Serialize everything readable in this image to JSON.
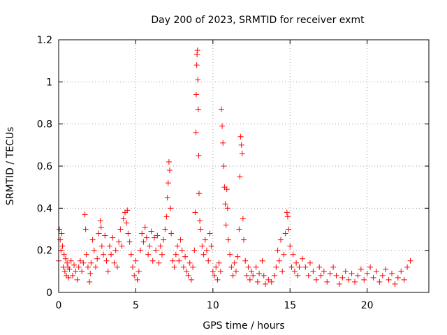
{
  "chart_data": {
    "type": "scatter",
    "title": "Day 200 of 2023, SRMTID for receiver exmt",
    "xlabel": "GPS time / hours",
    "ylabel": "SRMTID / TECUs",
    "xlim": [
      0,
      24
    ],
    "ylim": [
      0,
      1.2
    ],
    "x_ticks": [
      0,
      5,
      10,
      15,
      20
    ],
    "x_tick_labels": [
      "0",
      "5",
      "10",
      "15",
      "20"
    ],
    "y_ticks": [
      0,
      0.2,
      0.4,
      0.6,
      0.8,
      1,
      1.2
    ],
    "y_tick_labels": [
      "0",
      "0.2",
      "0.4",
      "0.6",
      "0.8",
      "1",
      "1.2"
    ],
    "grid": true,
    "marker": "+",
    "series": [
      {
        "name": "SRMTID",
        "color": "#ff0000",
        "points": [
          [
            0.0,
            0.15
          ],
          [
            0.05,
            0.3
          ],
          [
            0.1,
            0.25
          ],
          [
            0.15,
            0.2
          ],
          [
            0.2,
            0.28
          ],
          [
            0.25,
            0.22
          ],
          [
            0.3,
            0.12
          ],
          [
            0.35,
            0.18
          ],
          [
            0.4,
            0.1
          ],
          [
            0.45,
            0.16
          ],
          [
            0.5,
            0.08
          ],
          [
            0.55,
            0.14
          ],
          [
            0.6,
            0.12
          ],
          [
            0.65,
            0.07
          ],
          [
            0.7,
            0.11
          ],
          [
            0.8,
            0.15
          ],
          [
            0.9,
            0.08
          ],
          [
            1.0,
            0.13
          ],
          [
            1.1,
            0.1
          ],
          [
            1.2,
            0.06
          ],
          [
            1.3,
            0.12
          ],
          [
            1.4,
            0.15
          ],
          [
            1.5,
            0.1
          ],
          [
            1.6,
            0.14
          ],
          [
            1.7,
            0.37
          ],
          [
            1.75,
            0.3
          ],
          [
            1.8,
            0.18
          ],
          [
            1.9,
            0.12
          ],
          [
            2.0,
            0.05
          ],
          [
            2.05,
            0.09
          ],
          [
            2.1,
            0.14
          ],
          [
            2.2,
            0.25
          ],
          [
            2.3,
            0.2
          ],
          [
            2.4,
            0.12
          ],
          [
            2.5,
            0.16
          ],
          [
            2.6,
            0.28
          ],
          [
            2.7,
            0.34
          ],
          [
            2.75,
            0.31
          ],
          [
            2.8,
            0.22
          ],
          [
            2.9,
            0.18
          ],
          [
            3.0,
            0.27
          ],
          [
            3.1,
            0.15
          ],
          [
            3.2,
            0.1
          ],
          [
            3.3,
            0.22
          ],
          [
            3.4,
            0.18
          ],
          [
            3.5,
            0.26
          ],
          [
            3.6,
            0.14
          ],
          [
            3.7,
            0.2
          ],
          [
            3.8,
            0.12
          ],
          [
            3.9,
            0.24
          ],
          [
            4.0,
            0.3
          ],
          [
            4.1,
            0.22
          ],
          [
            4.2,
            0.35
          ],
          [
            4.3,
            0.38
          ],
          [
            4.4,
            0.33
          ],
          [
            4.45,
            0.39
          ],
          [
            4.5,
            0.28
          ],
          [
            4.6,
            0.24
          ],
          [
            4.7,
            0.18
          ],
          [
            4.8,
            0.12
          ],
          [
            4.9,
            0.08
          ],
          [
            5.0,
            0.15
          ],
          [
            5.1,
            0.06
          ],
          [
            5.2,
            0.1
          ],
          [
            5.3,
            0.2
          ],
          [
            5.4,
            0.28
          ],
          [
            5.5,
            0.24
          ],
          [
            5.6,
            0.31
          ],
          [
            5.7,
            0.26
          ],
          [
            5.8,
            0.18
          ],
          [
            5.9,
            0.22
          ],
          [
            6.0,
            0.29
          ],
          [
            6.1,
            0.15
          ],
          [
            6.2,
            0.26
          ],
          [
            6.3,
            0.2
          ],
          [
            6.4,
            0.27
          ],
          [
            6.5,
            0.14
          ],
          [
            6.6,
            0.22
          ],
          [
            6.7,
            0.18
          ],
          [
            6.8,
            0.25
          ],
          [
            6.9,
            0.3
          ],
          [
            7.0,
            0.36
          ],
          [
            7.05,
            0.45
          ],
          [
            7.1,
            0.52
          ],
          [
            7.15,
            0.62
          ],
          [
            7.2,
            0.58
          ],
          [
            7.25,
            0.4
          ],
          [
            7.3,
            0.28
          ],
          [
            7.4,
            0.15
          ],
          [
            7.5,
            0.12
          ],
          [
            7.6,
            0.18
          ],
          [
            7.7,
            0.22
          ],
          [
            7.8,
            0.15
          ],
          [
            7.9,
            0.25
          ],
          [
            8.0,
            0.2
          ],
          [
            8.1,
            0.12
          ],
          [
            8.2,
            0.17
          ],
          [
            8.3,
            0.1
          ],
          [
            8.4,
            0.08
          ],
          [
            8.5,
            0.14
          ],
          [
            8.6,
            0.06
          ],
          [
            8.7,
            0.12
          ],
          [
            8.8,
            0.2
          ],
          [
            8.85,
            0.38
          ],
          [
            8.9,
            0.76
          ],
          [
            8.92,
            0.94
          ],
          [
            8.95,
            1.08
          ],
          [
            8.97,
            1.13
          ],
          [
            9.0,
            1.15
          ],
          [
            9.02,
            1.01
          ],
          [
            9.05,
            0.87
          ],
          [
            9.08,
            0.65
          ],
          [
            9.1,
            0.47
          ],
          [
            9.15,
            0.34
          ],
          [
            9.2,
            0.3
          ],
          [
            9.3,
            0.22
          ],
          [
            9.4,
            0.18
          ],
          [
            9.5,
            0.25
          ],
          [
            9.6,
            0.2
          ],
          [
            9.7,
            0.15
          ],
          [
            9.8,
            0.28
          ],
          [
            9.9,
            0.22
          ],
          [
            10.0,
            0.1
          ],
          [
            10.1,
            0.08
          ],
          [
            10.2,
            0.12
          ],
          [
            10.3,
            0.06
          ],
          [
            10.4,
            0.14
          ],
          [
            10.5,
            0.1
          ],
          [
            10.55,
            0.87
          ],
          [
            10.6,
            0.79
          ],
          [
            10.65,
            0.71
          ],
          [
            10.7,
            0.6
          ],
          [
            10.75,
            0.5
          ],
          [
            10.8,
            0.42
          ],
          [
            10.85,
            0.32
          ],
          [
            10.9,
            0.49
          ],
          [
            10.95,
            0.4
          ],
          [
            11.0,
            0.25
          ],
          [
            11.1,
            0.18
          ],
          [
            11.2,
            0.12
          ],
          [
            11.3,
            0.08
          ],
          [
            11.4,
            0.14
          ],
          [
            11.5,
            0.1
          ],
          [
            11.6,
            0.17
          ],
          [
            11.7,
            0.3
          ],
          [
            11.75,
            0.55
          ],
          [
            11.8,
            0.74
          ],
          [
            11.85,
            0.7
          ],
          [
            11.9,
            0.66
          ],
          [
            11.95,
            0.35
          ],
          [
            12.0,
            0.25
          ],
          [
            12.1,
            0.15
          ],
          [
            12.2,
            0.08
          ],
          [
            12.3,
            0.12
          ],
          [
            12.4,
            0.06
          ],
          [
            12.5,
            0.1
          ],
          [
            12.6,
            0.08
          ],
          [
            12.8,
            0.12
          ],
          [
            12.9,
            0.05
          ],
          [
            13.0,
            0.09
          ],
          [
            13.2,
            0.15
          ],
          [
            13.3,
            0.08
          ],
          [
            13.4,
            0.04
          ],
          [
            13.6,
            0.06
          ],
          [
            13.8,
            0.05
          ],
          [
            14.0,
            0.08
          ],
          [
            14.1,
            0.12
          ],
          [
            14.2,
            0.2
          ],
          [
            14.3,
            0.15
          ],
          [
            14.4,
            0.25
          ],
          [
            14.5,
            0.1
          ],
          [
            14.6,
            0.18
          ],
          [
            14.7,
            0.28
          ],
          [
            14.8,
            0.38
          ],
          [
            14.85,
            0.36
          ],
          [
            14.9,
            0.3
          ],
          [
            15.0,
            0.22
          ],
          [
            15.1,
            0.12
          ],
          [
            15.2,
            0.18
          ],
          [
            15.3,
            0.1
          ],
          [
            15.4,
            0.14
          ],
          [
            15.5,
            0.08
          ],
          [
            15.6,
            0.12
          ],
          [
            15.8,
            0.16
          ],
          [
            16.0,
            0.12
          ],
          [
            16.2,
            0.08
          ],
          [
            16.3,
            0.14
          ],
          [
            16.5,
            0.1
          ],
          [
            16.7,
            0.06
          ],
          [
            16.9,
            0.12
          ],
          [
            17.0,
            0.08
          ],
          [
            17.2,
            0.1
          ],
          [
            17.4,
            0.05
          ],
          [
            17.6,
            0.09
          ],
          [
            17.8,
            0.12
          ],
          [
            18.0,
            0.08
          ],
          [
            18.2,
            0.04
          ],
          [
            18.4,
            0.07
          ],
          [
            18.6,
            0.1
          ],
          [
            18.8,
            0.06
          ],
          [
            19.0,
            0.09
          ],
          [
            19.2,
            0.05
          ],
          [
            19.4,
            0.08
          ],
          [
            19.6,
            0.11
          ],
          [
            19.8,
            0.06
          ],
          [
            20.0,
            0.09
          ],
          [
            20.2,
            0.12
          ],
          [
            20.4,
            0.07
          ],
          [
            20.6,
            0.1
          ],
          [
            20.8,
            0.05
          ],
          [
            21.0,
            0.08
          ],
          [
            21.2,
            0.11
          ],
          [
            21.4,
            0.06
          ],
          [
            21.6,
            0.09
          ],
          [
            21.8,
            0.04
          ],
          [
            22.0,
            0.07
          ],
          [
            22.2,
            0.1
          ],
          [
            22.4,
            0.06
          ],
          [
            22.6,
            0.12
          ],
          [
            22.8,
            0.15
          ]
        ]
      }
    ]
  }
}
